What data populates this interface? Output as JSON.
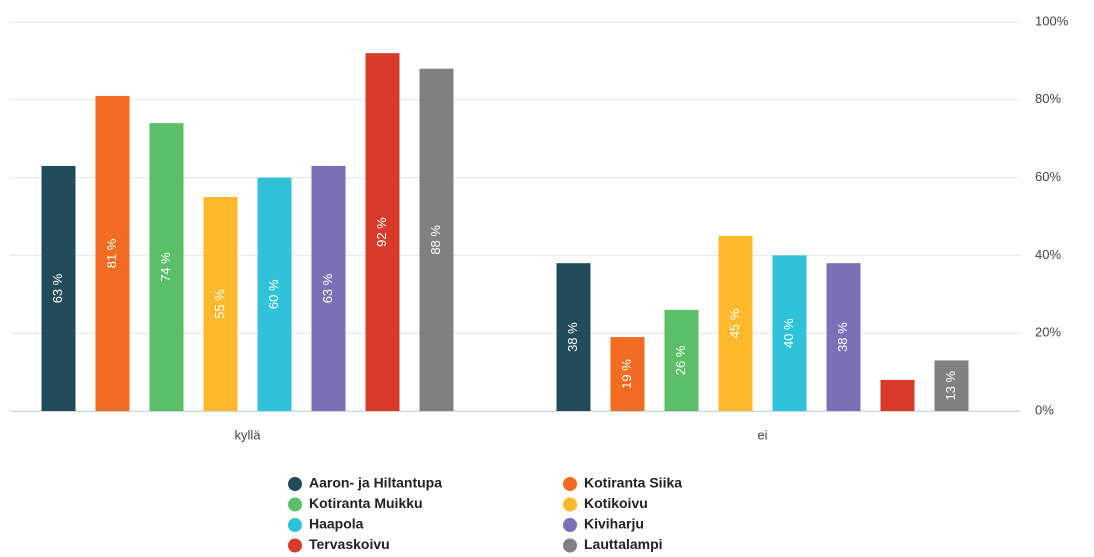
{
  "chart_data": {
    "type": "bar",
    "categories": [
      "kyllä",
      "ei"
    ],
    "series": [
      {
        "name": "Aaron- ja Hiltantupa",
        "color": "#234c5b",
        "values": [
          63,
          38
        ],
        "value_labels": [
          "63 %",
          "38 %"
        ]
      },
      {
        "name": "Kotiranta Siika",
        "color": "#f26d21",
        "values": [
          81,
          19
        ],
        "value_labels": [
          "81 %",
          "19 %"
        ]
      },
      {
        "name": "Kotiranta Muikku",
        "color": "#5bbf67",
        "values": [
          74,
          26
        ],
        "value_labels": [
          "74 %",
          "26 %"
        ]
      },
      {
        "name": "Kotikoivu",
        "color": "#fdb92c",
        "values": [
          55,
          45
        ],
        "value_labels": [
          "55 %",
          "45 %"
        ]
      },
      {
        "name": "Haapola",
        "color": "#2ec3d8",
        "values": [
          60,
          40
        ],
        "value_labels": [
          "60 %",
          "40 %"
        ]
      },
      {
        "name": "Kiviharju",
        "color": "#7b6fb8",
        "values": [
          63,
          38
        ],
        "value_labels": [
          "63 %",
          "38 %"
        ]
      },
      {
        "name": "Tervaskoivu",
        "color": "#d93b2b",
        "values": [
          92,
          8
        ],
        "value_labels": [
          "92 %",
          null
        ]
      },
      {
        "name": "Lauttalampi",
        "color": "#808080",
        "values": [
          88,
          13
        ],
        "value_labels": [
          "88 %",
          "13 %"
        ]
      }
    ],
    "ylim": [
      0,
      100
    ],
    "yticks": [
      {
        "value": 0,
        "label": "0%"
      },
      {
        "value": 20,
        "label": "20%"
      },
      {
        "value": 40,
        "label": "40%"
      },
      {
        "value": 60,
        "label": "60%"
      },
      {
        "value": 80,
        "label": "80%"
      },
      {
        "value": 100,
        "label": "100%"
      }
    ],
    "grid": true,
    "legend": "bottom"
  }
}
